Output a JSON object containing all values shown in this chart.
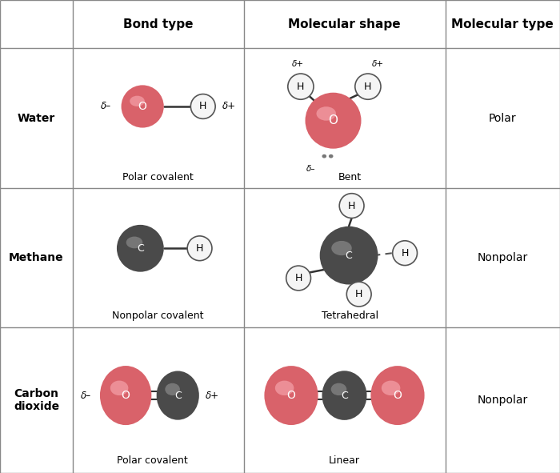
{
  "background": "#ffffff",
  "border_color": "#888888",
  "headers": [
    "",
    "Bond type",
    "Molecular shape",
    "Molecular type"
  ],
  "row_labels": [
    "Water",
    "Methane",
    "Carbon\ndioxide"
  ],
  "bond_types": [
    "Polar covalent",
    "Nonpolar covalent",
    "Polar covalent"
  ],
  "shapes": [
    "Bent",
    "Tetrahedral",
    "Linear"
  ],
  "mol_types": [
    "Polar",
    "Nonpolar",
    "Nonpolar"
  ],
  "color_O": "#d9626a",
  "color_C_dark": "#4a4a4a",
  "color_H": "#f5f5f5",
  "color_line": "#333333",
  "cols": [
    0.0,
    0.13,
    0.435,
    0.795,
    1.0
  ],
  "rows": [
    1.0,
    0.898,
    0.602,
    0.308,
    0.0
  ]
}
